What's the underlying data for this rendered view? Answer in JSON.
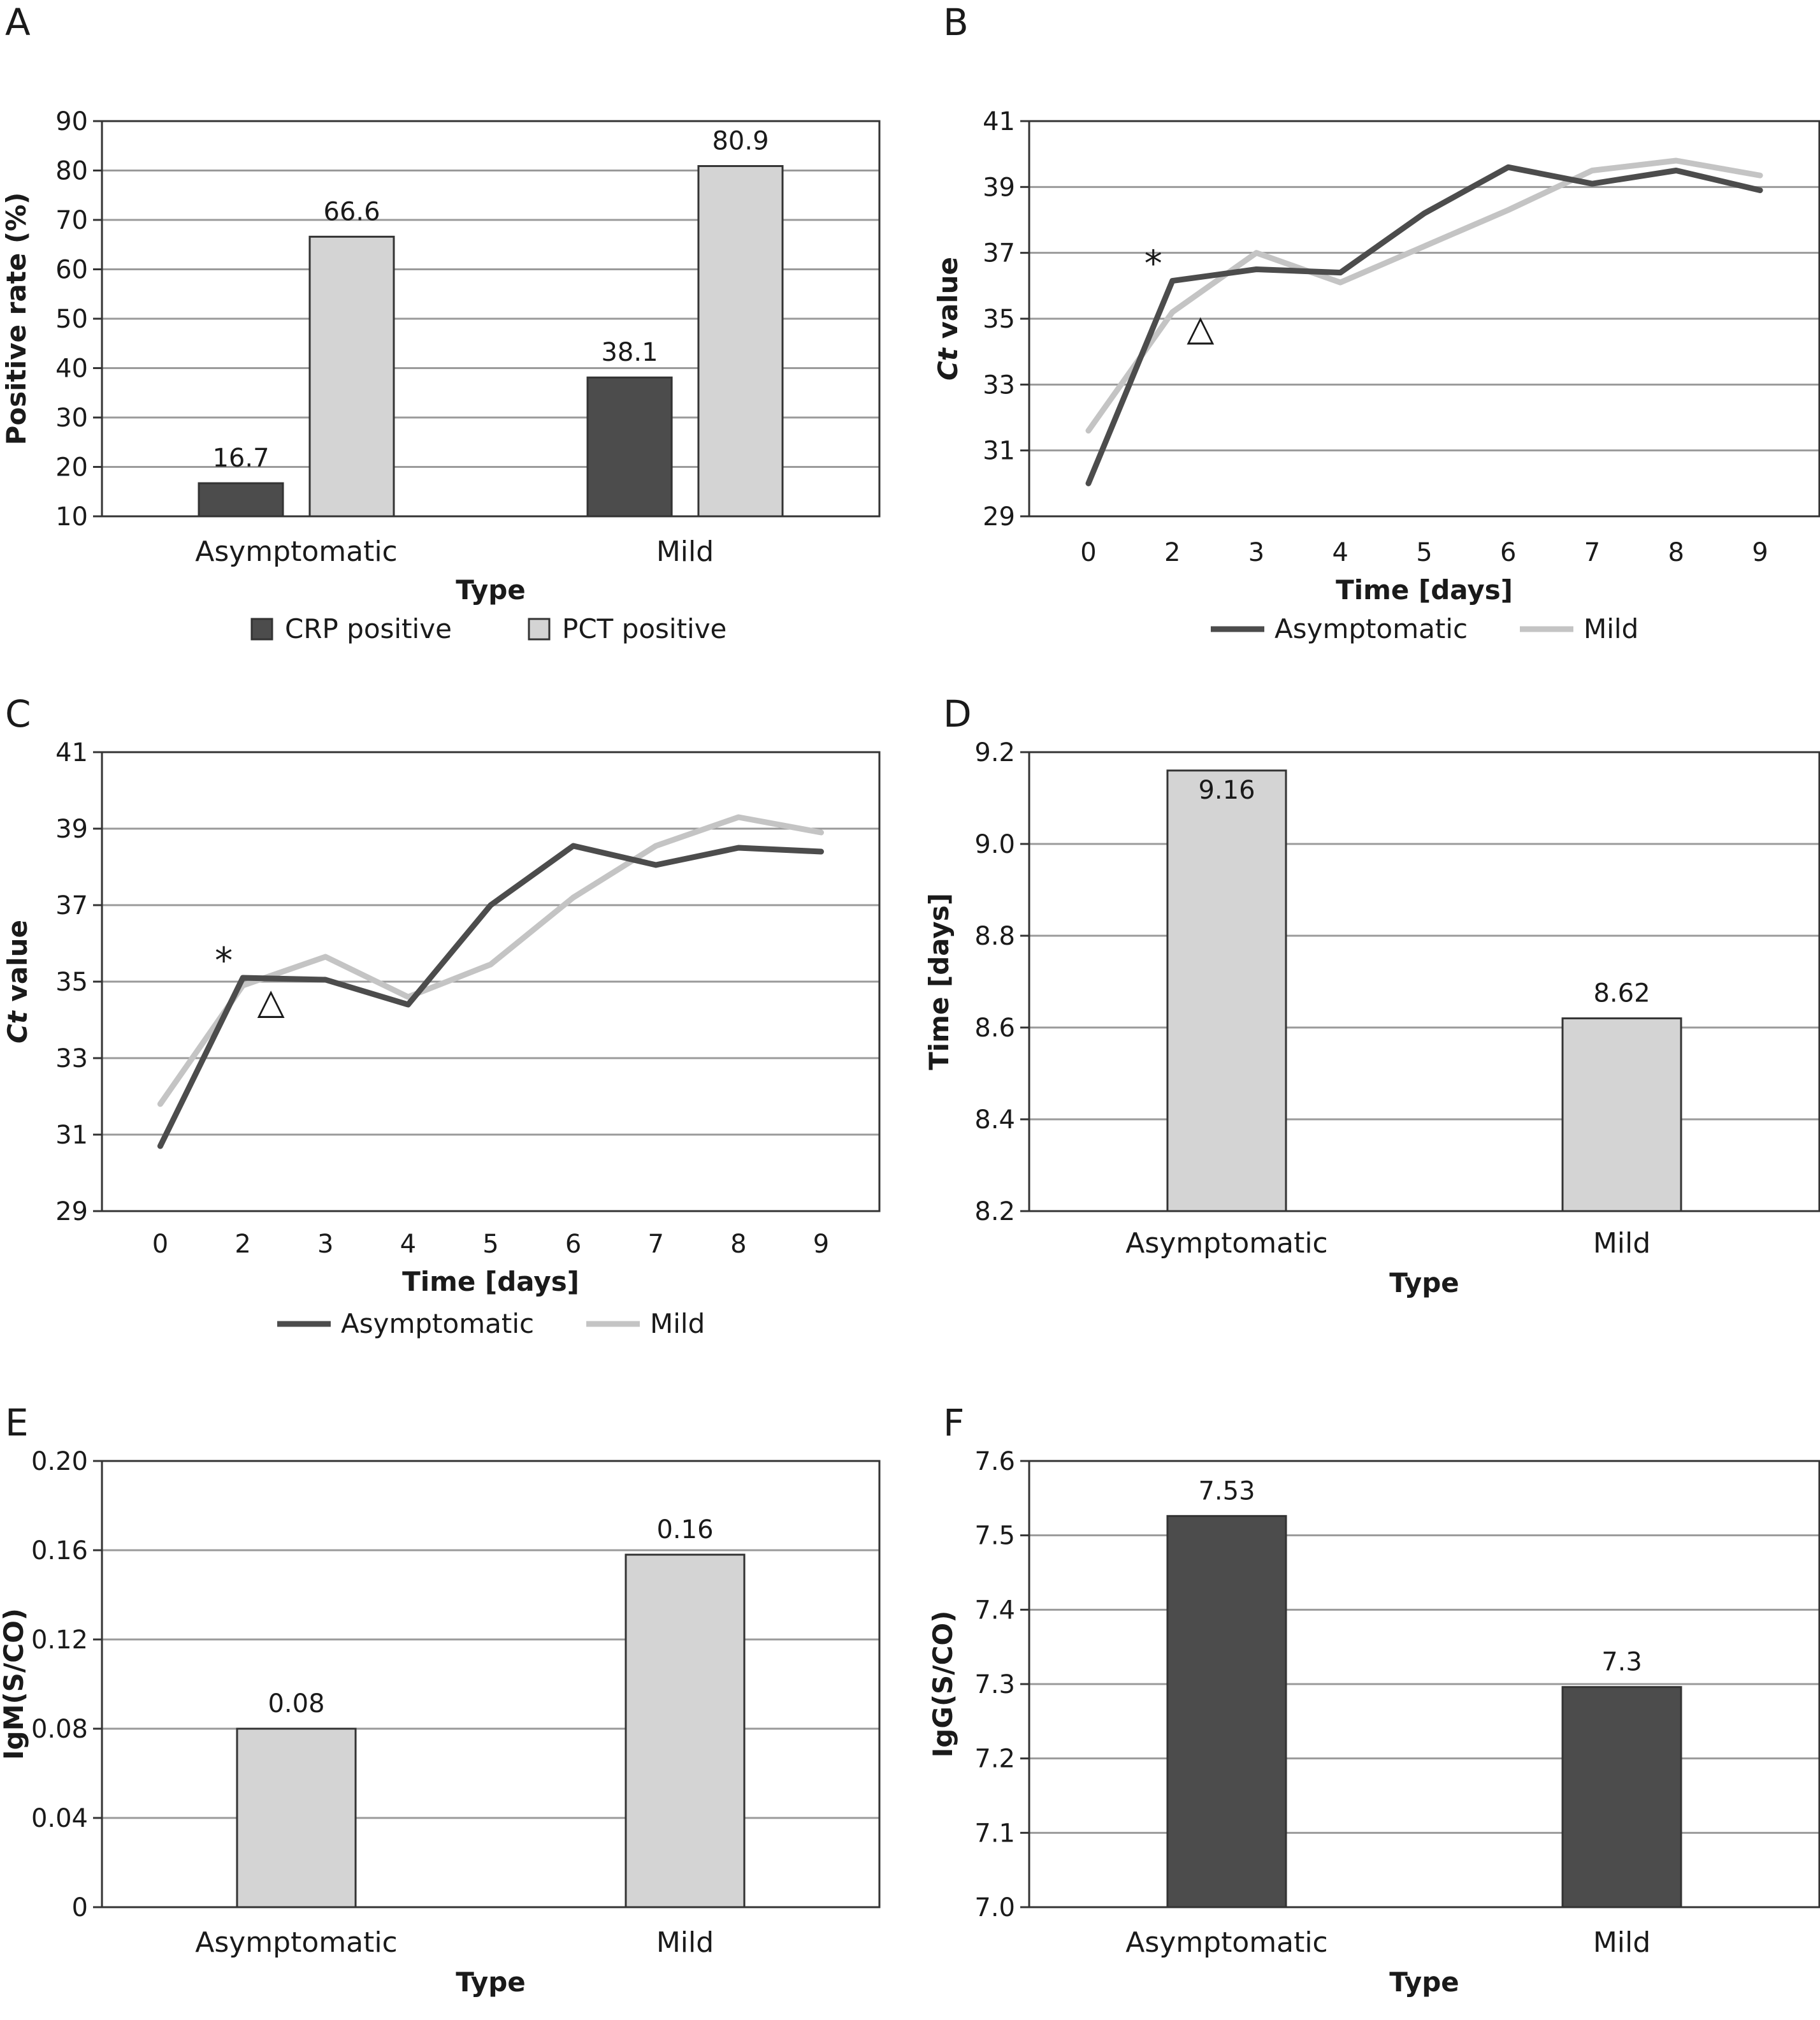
{
  "colors": {
    "dark": "#4c4c4c",
    "light": "#d4d4d4",
    "line_light": "#c4c4c4",
    "grid": "#9a9a9a",
    "frame": "#333333"
  },
  "chart_data": [
    {
      "panel": "A",
      "type": "bar",
      "categories": [
        "Asymptomatic",
        "Mild"
      ],
      "series": [
        {
          "name": "CRP positive",
          "values": [
            16.7,
            38.1
          ],
          "color": "#4c4c4c",
          "labels": [
            "16.7",
            "38.1"
          ]
        },
        {
          "name": "PCT positive",
          "values": [
            66.6,
            80.9
          ],
          "color": "#d4d4d4",
          "labels": [
            "66.6",
            "80.9"
          ]
        }
      ],
      "xlabel": "Type",
      "ylabel": "Positive rate (%)",
      "ylim": [
        10,
        90
      ],
      "yticks": [
        "10",
        "20",
        "30",
        "40",
        "50",
        "60",
        "70",
        "80",
        "90"
      ],
      "grid": true,
      "legend": "bottom"
    },
    {
      "panel": "B",
      "type": "line",
      "x": [
        "0",
        "2",
        "3",
        "4",
        "5",
        "6",
        "7",
        "8",
        "9"
      ],
      "series": [
        {
          "name": "Asymptomatic",
          "values": [
            30.0,
            36.15,
            36.5,
            36.4,
            38.2,
            39.6,
            39.1,
            39.5,
            38.9
          ],
          "color": "#4c4c4c"
        },
        {
          "name": "Mild",
          "values": [
            31.6,
            35.2,
            37.0,
            36.1,
            37.2,
            38.3,
            39.5,
            39.8,
            39.35
          ],
          "color": "#c4c4c4"
        }
      ],
      "xlabel": "Time [days]",
      "ylabel_italic": "Ct",
      "ylabel_rest": " value",
      "ylim": [
        29,
        41
      ],
      "yticks": [
        "29",
        "31",
        "33",
        "35",
        "37",
        "39",
        "41"
      ],
      "annotations": [
        "*",
        "△"
      ],
      "grid": true,
      "legend": "bottom"
    },
    {
      "panel": "C",
      "type": "line",
      "x": [
        "0",
        "2",
        "3",
        "4",
        "5",
        "6",
        "7",
        "8",
        "9"
      ],
      "series": [
        {
          "name": "Asymptomatic",
          "values": [
            30.7,
            35.1,
            35.05,
            34.4,
            37.0,
            38.55,
            38.05,
            38.5,
            38.4
          ],
          "color": "#4c4c4c"
        },
        {
          "name": "Mild",
          "values": [
            31.8,
            34.9,
            35.65,
            34.6,
            35.45,
            37.2,
            38.55,
            39.3,
            38.9
          ],
          "color": "#c4c4c4"
        }
      ],
      "xlabel": "Time [days]",
      "ylabel_italic": "Ct",
      "ylabel_rest": " value",
      "ylim": [
        29,
        41
      ],
      "yticks": [
        "29",
        "31",
        "33",
        "35",
        "37",
        "39",
        "41"
      ],
      "annotations": [
        "*",
        "△"
      ],
      "grid": true,
      "legend": "bottom"
    },
    {
      "panel": "D",
      "type": "bar",
      "categories": [
        "Asymptomatic",
        "Mild"
      ],
      "series": [
        {
          "values": [
            9.16,
            8.62
          ],
          "color": "#d4d4d4",
          "labels": [
            "9.16",
            "8.62"
          ]
        }
      ],
      "xlabel": "Type",
      "ylabel": "Time [days]",
      "ylim": [
        8.2,
        9.2
      ],
      "yticks": [
        "8.2",
        "8.4",
        "8.6",
        "8.8",
        "9.0",
        "9.2"
      ],
      "grid": true
    },
    {
      "panel": "E",
      "type": "bar",
      "categories": [
        "Asymptomatic",
        "Mild"
      ],
      "series": [
        {
          "values": [
            0.08,
            0.158
          ],
          "color": "#d4d4d4",
          "labels": [
            "0.08",
            "0.16"
          ]
        }
      ],
      "xlabel": "Type",
      "ylabel": "IgM(S/CO)",
      "ylim": [
        0,
        0.2
      ],
      "yticks": [
        "0",
        "0.04",
        "0.08",
        "0.12",
        "0.16",
        "0.20"
      ],
      "grid": true
    },
    {
      "panel": "F",
      "type": "bar",
      "categories": [
        "Asymptomatic",
        "Mild"
      ],
      "series": [
        {
          "values": [
            7.526,
            7.296
          ],
          "color": "#4c4c4c",
          "labels": [
            "7.53",
            "7.3"
          ]
        }
      ],
      "xlabel": "Type",
      "ylabel": "IgG(S/CO)",
      "ylim": [
        7.0,
        7.6
      ],
      "yticks": [
        "7.0",
        "7.1",
        "7.2",
        "7.3",
        "7.4",
        "7.5",
        "7.6"
      ],
      "grid": true
    }
  ]
}
